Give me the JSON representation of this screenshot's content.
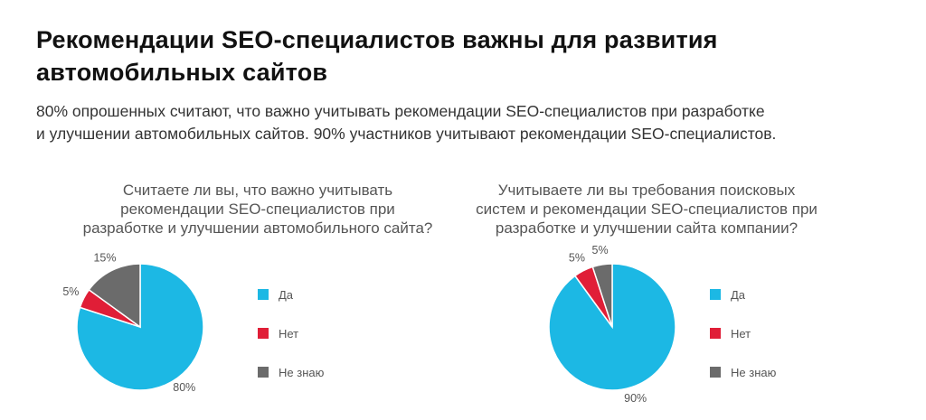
{
  "header": {
    "title_line1": "Рекомендации SEO-специалистов важны для развития",
    "title_line2": "автомобильных сайтов",
    "subtitle_line1": "80% опрошенных считают, что важно учитывать рекомендации SEO-специалистов при разработке",
    "subtitle_line2": "и улучшении автомобильных сайтов. 90% участников учитывают рекомендации SEO-специалистов."
  },
  "colors": {
    "yes": "#1cb8e4",
    "no": "#e01e37",
    "dont_know": "#6b6b6b"
  },
  "chart_data": [
    {
      "type": "pie",
      "title_lines": [
        "Считаете ли вы, что важно учитывать",
        "рекомендации SEO-специалистов при",
        "разработке и улучшении автомобильного сайта?"
      ],
      "categories": [
        "Да",
        "Нет",
        "Не знаю"
      ],
      "values": [
        80,
        5,
        15
      ],
      "labels": [
        "80%",
        "5%",
        "15%"
      ],
      "legend": "right"
    },
    {
      "type": "pie",
      "title_lines": [
        "Учитываете ли вы требования поисковых",
        "систем и рекомендации SEO-специалистов при",
        "разработке и улучшении сайта компании?"
      ],
      "categories": [
        "Да",
        "Нет",
        "Не знаю"
      ],
      "values": [
        90,
        5,
        5
      ],
      "labels": [
        "90%",
        "5%",
        "5%"
      ],
      "legend": "right"
    }
  ]
}
